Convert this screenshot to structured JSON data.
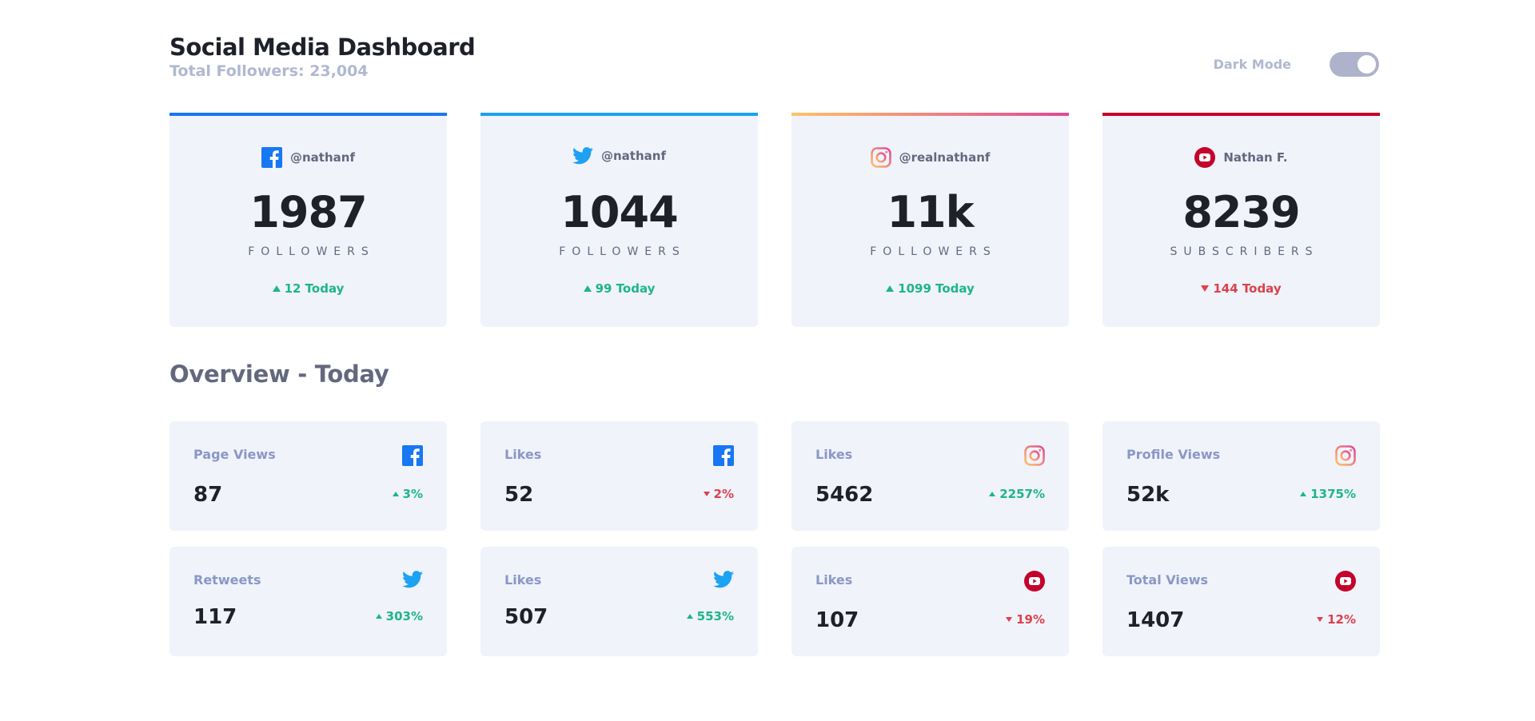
{
  "header": {
    "title": "Social Media Dashboard",
    "subtitle": "Total Followers: 23,004",
    "dark_mode_label": "Dark Mode"
  },
  "colors": {
    "facebook": "#1877f2",
    "twitter": "#1da1f2",
    "youtube": "#c4032b",
    "up": "#1eb589",
    "down": "#dc414c",
    "card_bg": "#f0f3fa"
  },
  "cards": [
    {
      "platform": "facebook-icon",
      "handle": "@nathanf",
      "count": "1987",
      "unit": "FOLLOWERS",
      "delta": "12 Today",
      "direction": "up"
    },
    {
      "platform": "twitter-icon",
      "handle": "@nathanf",
      "count": "1044",
      "unit": "FOLLOWERS",
      "delta": "99 Today",
      "direction": "up"
    },
    {
      "platform": "instagram-icon",
      "handle": "@realnathanf",
      "count": "11k",
      "unit": "FOLLOWERS",
      "delta": "1099 Today",
      "direction": "up"
    },
    {
      "platform": "youtube-icon",
      "handle": "Nathan F.",
      "count": "8239",
      "unit": "SUBSCRIBERS",
      "delta": "144 Today",
      "direction": "down"
    }
  ],
  "overview": {
    "title": "Overview - Today",
    "items": [
      {
        "label": "Page Views",
        "icon": "facebook-icon",
        "value": "87",
        "delta": "3%",
        "direction": "up"
      },
      {
        "label": "Likes",
        "icon": "facebook-icon",
        "value": "52",
        "delta": "2%",
        "direction": "down"
      },
      {
        "label": "Likes",
        "icon": "instagram-icon",
        "value": "5462",
        "delta": "2257%",
        "direction": "up"
      },
      {
        "label": "Profile Views",
        "icon": "instagram-icon",
        "value": "52k",
        "delta": "1375%",
        "direction": "up"
      },
      {
        "label": "Retweets",
        "icon": "twitter-icon",
        "value": "117",
        "delta": "303%",
        "direction": "up"
      },
      {
        "label": "Likes",
        "icon": "twitter-icon",
        "value": "507",
        "delta": "553%",
        "direction": "up"
      },
      {
        "label": "Likes",
        "icon": "youtube-icon",
        "value": "107",
        "delta": "19%",
        "direction": "down"
      },
      {
        "label": "Total Views",
        "icon": "youtube-icon",
        "value": "1407",
        "delta": "12%",
        "direction": "down"
      }
    ]
  }
}
